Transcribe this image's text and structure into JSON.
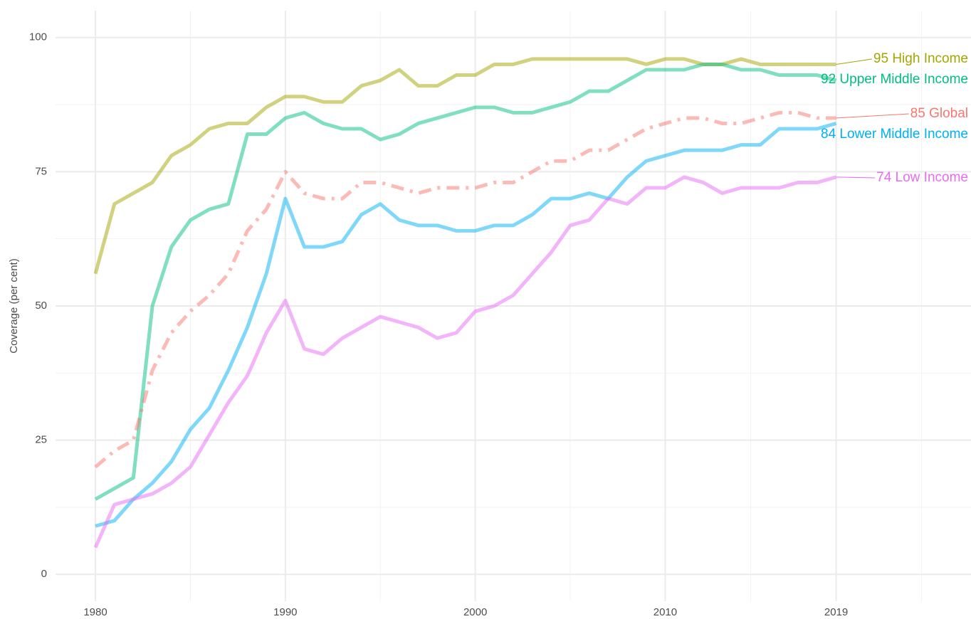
{
  "chart_data": {
    "type": "line",
    "y_label": "Coverage (per cent)",
    "x": [
      1980,
      1981,
      1982,
      1983,
      1984,
      1985,
      1986,
      1987,
      1988,
      1989,
      1990,
      1991,
      1992,
      1993,
      1994,
      1995,
      1996,
      1997,
      1998,
      1999,
      2000,
      2001,
      2002,
      2003,
      2004,
      2005,
      2006,
      2007,
      2008,
      2009,
      2010,
      2011,
      2012,
      2013,
      2014,
      2015,
      2016,
      2017,
      2018,
      2019
    ],
    "xlim": [
      1977.9,
      2026.1
    ],
    "xticks": [
      1980,
      1990,
      2000,
      2010,
      2019
    ],
    "ylim": [
      -5,
      105
    ],
    "yticks": [
      0,
      25,
      50,
      75,
      100
    ],
    "grid": true,
    "series": [
      {
        "name": "High Income",
        "end_label": "95 High Income",
        "color": "#a3a500",
        "dash": false,
        "values": [
          56,
          69,
          71,
          73,
          78,
          80,
          83,
          84,
          84,
          87,
          89,
          89,
          88,
          88,
          91,
          92,
          94,
          91,
          91,
          93,
          93,
          95,
          95,
          96,
          96,
          96,
          96,
          96,
          96,
          95,
          96,
          96,
          95,
          95,
          96,
          95,
          95,
          95,
          95,
          95
        ]
      },
      {
        "name": "Upper Middle Income",
        "end_label": "92 Upper Middle Income",
        "color": "#00bf7d",
        "dash": false,
        "values": [
          14,
          16,
          18,
          50,
          61,
          66,
          68,
          69,
          82,
          82,
          85,
          86,
          84,
          83,
          83,
          81,
          82,
          84,
          85,
          86,
          87,
          87,
          86,
          86,
          87,
          88,
          90,
          90,
          92,
          94,
          94,
          94,
          95,
          95,
          94,
          94,
          93,
          93,
          93,
          92
        ]
      },
      {
        "name": "Global",
        "end_label": "85 Global",
        "color": "#f8766d",
        "dash": true,
        "values": [
          20,
          23,
          25,
          38,
          45,
          49,
          52,
          56,
          64,
          68,
          75,
          71,
          70,
          70,
          73,
          73,
          72,
          71,
          72,
          72,
          72,
          73,
          73,
          75,
          77,
          77,
          79,
          79,
          81,
          83,
          84,
          85,
          85,
          84,
          84,
          85,
          86,
          86,
          85,
          85
        ]
      },
      {
        "name": "Lower Middle Income",
        "end_label": "84 Lower Middle Income",
        "color": "#00b0f6",
        "dash": false,
        "values": [
          9,
          10,
          14,
          17,
          21,
          27,
          31,
          38,
          46,
          56,
          70,
          61,
          61,
          62,
          67,
          69,
          66,
          65,
          65,
          64,
          64,
          65,
          65,
          67,
          70,
          70,
          71,
          70,
          74,
          77,
          78,
          79,
          79,
          79,
          80,
          80,
          83,
          83,
          83,
          84
        ]
      },
      {
        "name": "Low Income",
        "end_label": "74 Low Income",
        "color": "#e76bf3",
        "dash": false,
        "values": [
          5,
          13,
          14,
          15,
          17,
          20,
          26,
          32,
          37,
          45,
          51,
          42,
          41,
          44,
          46,
          48,
          47,
          46,
          44,
          45,
          49,
          50,
          52,
          56,
          60,
          65,
          66,
          70,
          69,
          72,
          72,
          74,
          73,
          71,
          72,
          72,
          72,
          73,
          73,
          74
        ]
      }
    ]
  }
}
